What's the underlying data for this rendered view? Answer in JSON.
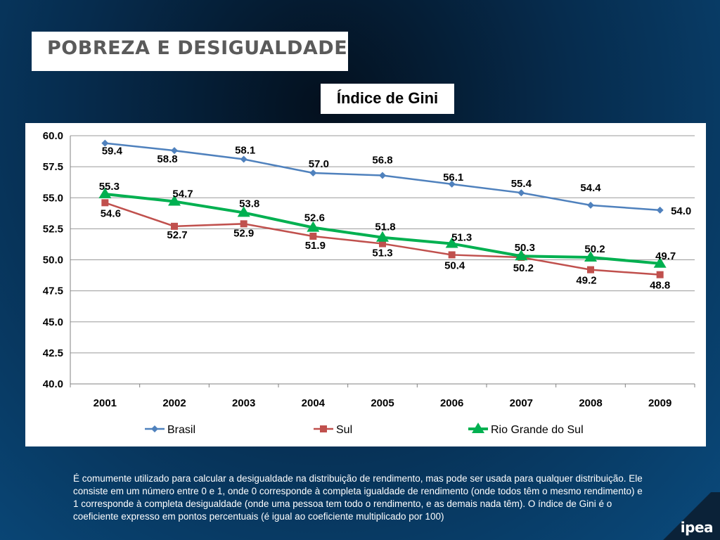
{
  "header": {
    "title": "POBREZA E DESIGUALDADE"
  },
  "chart_title": "Índice de Gini",
  "description": "É comumente utilizado para calcular a desigualdade na distribuição de rendimento, mas pode ser usada para qualquer distribuição. Ele consiste em um número entre 0 e 1, onde 0 corresponde à completa igualdade de rendimento (onde todos têm o mesmo rendimento) e 1 corresponde à completa desigualdade (onde uma pessoa tem todo o rendimento, e as demais nada têm). O índice de Gini é o coeficiente expresso em pontos percentuais (é igual ao coeficiente multiplicado por 100)",
  "logo": "ipea",
  "chart_data": {
    "type": "line",
    "title": "Índice de Gini",
    "xlabel": "",
    "ylabel": "",
    "categories": [
      "2001",
      "2002",
      "2003",
      "2004",
      "2005",
      "2006",
      "2007",
      "2008",
      "2009"
    ],
    "ylim": [
      40.0,
      60.0
    ],
    "yticks": [
      "40.0",
      "42.5",
      "45.0",
      "47.5",
      "50.0",
      "52.5",
      "55.0",
      "57.5",
      "60.0"
    ],
    "grid": true,
    "legend_position": "bottom",
    "series": [
      {
        "name": "Brasil",
        "color": "#4f81bd",
        "marker": "diamond",
        "values": [
          59.4,
          58.8,
          58.1,
          57.0,
          56.8,
          56.1,
          55.4,
          54.4,
          54.0
        ],
        "labels": [
          "59.4",
          "58.8",
          "58.1",
          "57.0",
          "56.8",
          "56.1",
          "55.4",
          "54.4",
          "54.0"
        ]
      },
      {
        "name": "Sul",
        "color": "#c0504d",
        "marker": "square",
        "values": [
          54.6,
          52.7,
          52.9,
          51.9,
          51.3,
          50.4,
          50.2,
          49.2,
          48.8
        ],
        "labels": [
          "54.6",
          "52.7",
          "52.9",
          "51.9",
          "51.3",
          "50.4",
          "50.2",
          "49.2",
          "48.8"
        ]
      },
      {
        "name": "Rio Grande do Sul",
        "color": "#00b050",
        "marker": "triangle",
        "values": [
          55.3,
          54.7,
          53.8,
          52.6,
          51.8,
          51.3,
          50.3,
          50.2,
          49.7
        ],
        "labels": [
          "55.3",
          "54.7",
          "53.8",
          "52.6",
          "51.8",
          "51.3",
          "50.3",
          "50.2",
          "49.7"
        ]
      }
    ]
  }
}
